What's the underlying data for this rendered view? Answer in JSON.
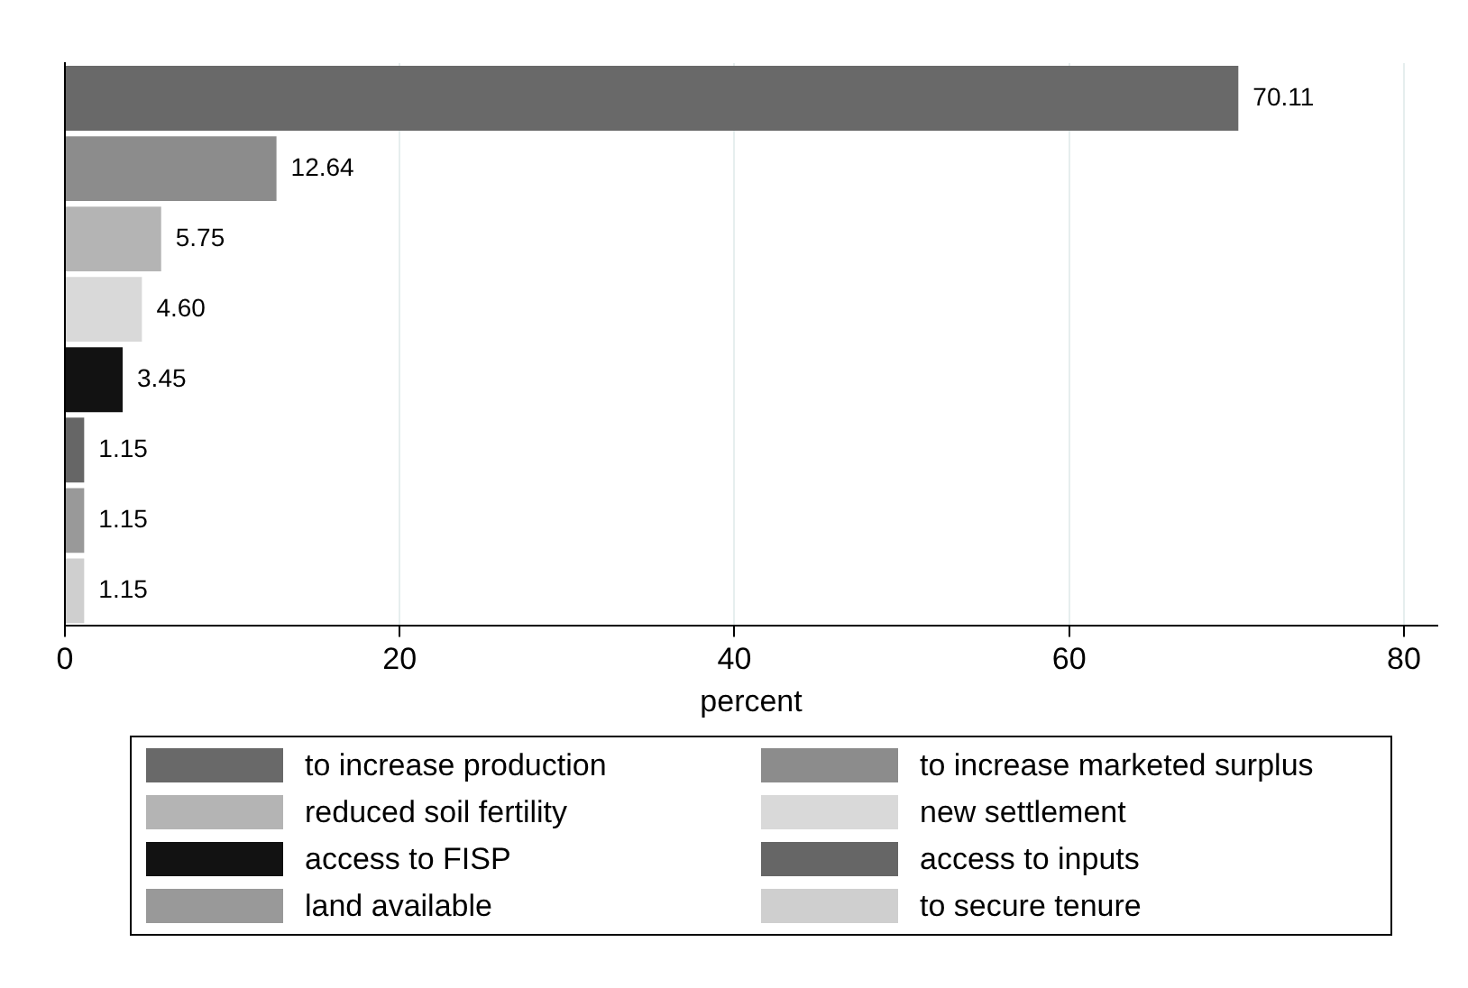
{
  "chart_data": {
    "type": "bar",
    "orientation": "horizontal",
    "xlabel": "percent",
    "categories": [
      null,
      null,
      null,
      null,
      null,
      null,
      null,
      null
    ],
    "series": [
      {
        "name": "to increase production",
        "color": "#696969",
        "values": [
          70.11,
          null,
          null,
          null,
          null,
          null,
          null,
          null
        ],
        "value_labels": [
          "70.11",
          null,
          null,
          null,
          null,
          null,
          null,
          null
        ]
      },
      {
        "name": "to increase marketed surplus",
        "color": "#8c8c8c",
        "values": [
          null,
          12.64,
          null,
          null,
          null,
          null,
          null,
          null
        ],
        "value_labels": [
          null,
          "12.64",
          null,
          null,
          null,
          null,
          null,
          null
        ]
      },
      {
        "name": "reduced soil fertility",
        "color": "#b4b4b4",
        "values": [
          null,
          null,
          5.75,
          null,
          null,
          null,
          null,
          null
        ],
        "value_labels": [
          null,
          null,
          "5.75",
          null,
          null,
          null,
          null,
          null
        ]
      },
      {
        "name": "new settlement",
        "color": "#d9d9d9",
        "values": [
          null,
          null,
          null,
          4.6,
          null,
          null,
          null,
          null
        ],
        "value_labels": [
          null,
          null,
          null,
          "4.60",
          null,
          null,
          null,
          null
        ]
      },
      {
        "name": "access to FISP",
        "color": "#121212",
        "values": [
          null,
          null,
          null,
          null,
          3.45,
          null,
          null,
          null
        ],
        "value_labels": [
          null,
          null,
          null,
          null,
          "3.45",
          null,
          null,
          null
        ]
      },
      {
        "name": "access to inputs",
        "color": "#666666",
        "values": [
          null,
          null,
          null,
          null,
          null,
          1.15,
          null,
          null
        ],
        "value_labels": [
          null,
          null,
          null,
          null,
          null,
          "1.15",
          null,
          null
        ]
      },
      {
        "name": "land available",
        "color": "#999999",
        "values": [
          null,
          null,
          null,
          null,
          null,
          null,
          1.15,
          null
        ],
        "value_labels": [
          null,
          null,
          null,
          null,
          null,
          null,
          "1.15",
          null
        ]
      },
      {
        "name": "to secure tenure",
        "color": "#cfcfcf",
        "values": [
          null,
          null,
          null,
          null,
          null,
          null,
          null,
          1.15
        ],
        "value_labels": [
          null,
          null,
          null,
          null,
          null,
          null,
          null,
          "1.15"
        ]
      }
    ],
    "xlim": [
      0,
      82
    ],
    "xticks": [
      0,
      20,
      40,
      60,
      80
    ],
    "grid": "x",
    "legend": "bottom",
    "tick_labels": "x"
  }
}
